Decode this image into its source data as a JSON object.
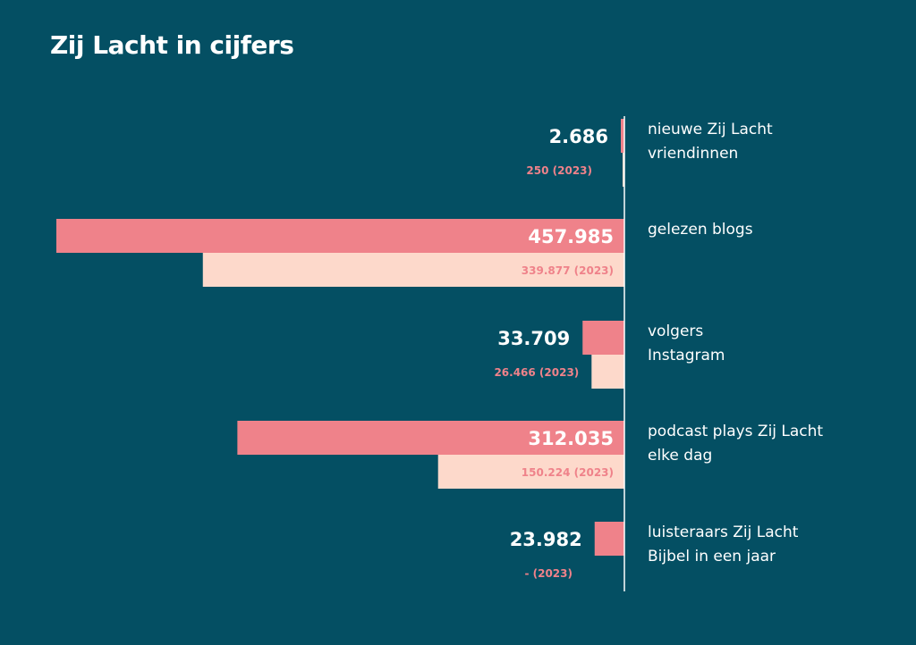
{
  "title": "Zij Lacht in cijfers",
  "colors": {
    "background": "#044f63",
    "current": "#ef828a",
    "previous": "#fdd9cb",
    "axis": "#ffffff",
    "text": "#ffffff"
  },
  "chart_data": {
    "type": "bar",
    "orientation": "horizontal",
    "title": "Zij Lacht in cijfers",
    "xlim": [
      0,
      457985
    ],
    "series": [
      {
        "name": "current",
        "values": [
          2686,
          457985,
          33709,
          312035,
          23982
        ]
      },
      {
        "name": "2023",
        "values": [
          250,
          339877,
          26466,
          150224,
          null
        ]
      }
    ],
    "categories": [
      [
        "nieuwe Zij Lacht",
        "vriendinnen"
      ],
      [
        "gelezen blogs"
      ],
      [
        "volgers",
        "Instagram"
      ],
      [
        "podcast plays Zij Lacht",
        "elke dag"
      ],
      [
        "luisteraars Zij Lacht",
        "Bijbel in een jaar"
      ]
    ],
    "value_labels": [
      "2.686",
      "457.985",
      "33.709",
      "312.035",
      "23.982"
    ],
    "previous_labels": [
      "250 (2023)",
      "339.877 (2023)",
      "26.466 (2023)",
      "150.224 (2023)",
      "- (2023)"
    ]
  }
}
